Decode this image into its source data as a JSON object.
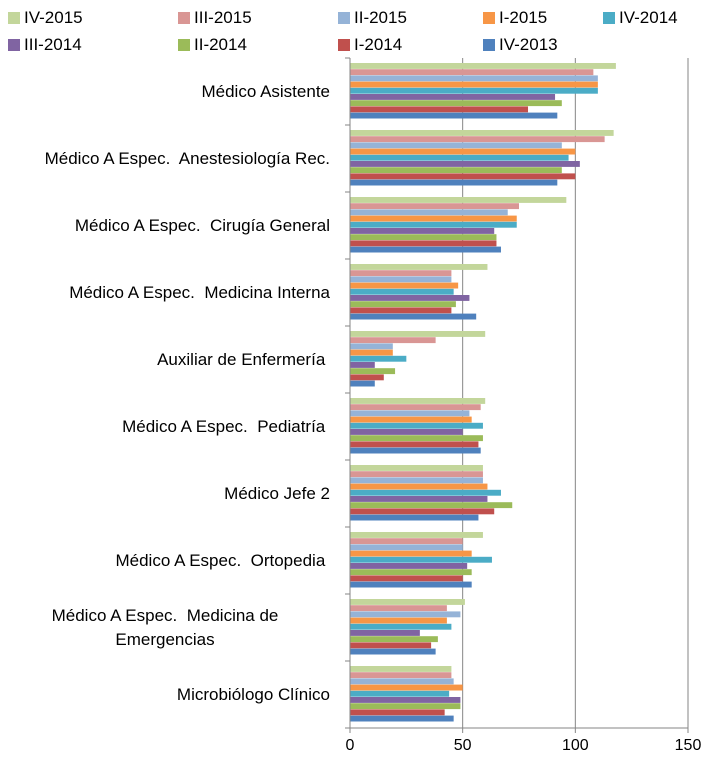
{
  "chart_data": {
    "type": "barh",
    "categories": [
      "Médico Asistente",
      "Médico A Espec.  Anestesiología Rec.",
      "Médico A Espec.  Cirugía General",
      "Médico A Espec.  Medicina Interna",
      "Auxiliar de Enfermería ",
      "Médico A Espec.  Pediatría ",
      "Médico Jefe 2",
      "Médico A Espec.  Ortopedia ",
      "Médico A Espec.  Medicina de Emergencias",
      "Microbiólogo Clínico"
    ],
    "series": [
      {
        "name": "IV-2015",
        "color": "#c3d69b",
        "values": [
          118,
          117,
          96,
          61,
          60,
          60,
          59,
          59,
          51,
          45
        ]
      },
      {
        "name": "III-2015",
        "color": "#d99694",
        "values": [
          108,
          113,
          75,
          45,
          38,
          58,
          59,
          50,
          43,
          45
        ]
      },
      {
        "name": "II-2015",
        "color": "#95b3d7",
        "values": [
          110,
          94,
          70,
          45,
          19,
          53,
          59,
          50,
          49,
          46
        ]
      },
      {
        "name": "I-2015",
        "color": "#f79646",
        "values": [
          110,
          100,
          74,
          48,
          19,
          54,
          61,
          54,
          43,
          50
        ]
      },
      {
        "name": "IV-2014",
        "color": "#4bacc6",
        "values": [
          110,
          97,
          74,
          46,
          25,
          59,
          67,
          63,
          45,
          44
        ]
      },
      {
        "name": "III-2014",
        "color": "#8064a2",
        "values": [
          91,
          102,
          64,
          53,
          11,
          50,
          61,
          52,
          31,
          49
        ]
      },
      {
        "name": "II-2014",
        "color": "#9bbb59",
        "values": [
          94,
          94,
          65,
          47,
          20,
          59,
          72,
          54,
          39,
          49
        ]
      },
      {
        "name": "I-2014",
        "color": "#c0504d",
        "values": [
          79,
          100,
          65,
          45,
          15,
          57,
          64,
          50,
          36,
          42
        ]
      },
      {
        "name": "IV-2013",
        "color": "#4f81bd",
        "values": [
          92,
          92,
          67,
          56,
          11,
          58,
          57,
          54,
          38,
          46
        ]
      }
    ],
    "xlim": [
      0,
      150
    ],
    "xticks": [
      0,
      50,
      100,
      150
    ],
    "grid": true,
    "legend": "top"
  }
}
